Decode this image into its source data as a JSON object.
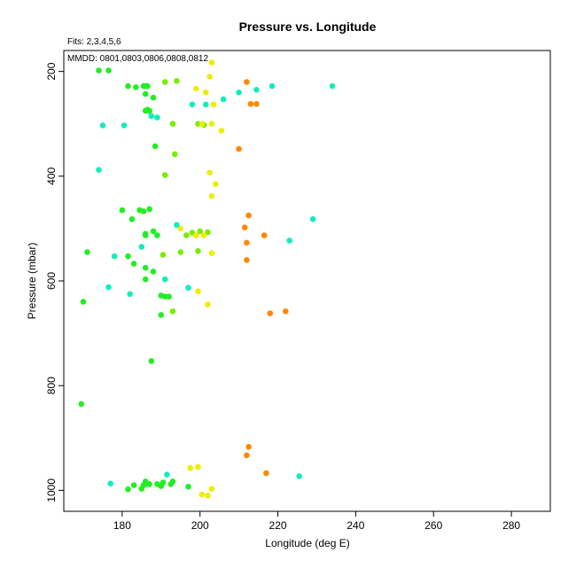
{
  "chart_data": {
    "type": "scatter",
    "title": "Pressure vs. Longitude",
    "xlabel": "Longitude (deg E)",
    "ylabel": "Pressure (mbar)",
    "xlim": [
      165,
      290
    ],
    "ylim": [
      1040,
      160
    ],
    "y_inverted": true,
    "xticks": [
      180,
      200,
      220,
      240,
      260,
      280
    ],
    "yticks": [
      200,
      400,
      600,
      800,
      1000
    ],
    "fits_note": "Fits: 2,3,4,5,6",
    "mmdd_note": "MMDD: 0801,0803,0806,0808,0812",
    "grid": false,
    "legend": "none",
    "colors": {
      "green": "#22ee22",
      "lightgreen": "#77ee00",
      "yellow": "#eeee00",
      "orange": "#ff8800",
      "cyan": "#11eebb"
    },
    "series": [
      {
        "color_key": "green",
        "points": [
          [
            174,
            198
          ],
          [
            176.5,
            198
          ],
          [
            181.5,
            228
          ],
          [
            183.5,
            230
          ],
          [
            185.5,
            228
          ],
          [
            186,
            228
          ],
          [
            186.5,
            228
          ],
          [
            186,
            243
          ],
          [
            188,
            250
          ],
          [
            186,
            275
          ],
          [
            186.5,
            273
          ],
          [
            187,
            275
          ],
          [
            188.5,
            343
          ],
          [
            180,
            465
          ],
          [
            182.5,
            482
          ],
          [
            184.5,
            465
          ],
          [
            185.5,
            467
          ],
          [
            187,
            463
          ],
          [
            186,
            510
          ],
          [
            186,
            513
          ],
          [
            188,
            505
          ],
          [
            189,
            513
          ],
          [
            171,
            545
          ],
          [
            181.5,
            553
          ],
          [
            183,
            567
          ],
          [
            186,
            575
          ],
          [
            188,
            582
          ],
          [
            186,
            597
          ],
          [
            170,
            640
          ],
          [
            190,
            628
          ],
          [
            191,
            630
          ],
          [
            192,
            630
          ],
          [
            190,
            665
          ],
          [
            187.5,
            753
          ],
          [
            169.5,
            835
          ],
          [
            181.5,
            998
          ],
          [
            183,
            990
          ],
          [
            185,
            997
          ],
          [
            185.5,
            990
          ],
          [
            186,
            983
          ],
          [
            186,
            988
          ],
          [
            187,
            988
          ],
          [
            189,
            988
          ],
          [
            190,
            992
          ],
          [
            190.5,
            985
          ],
          [
            192.5,
            988
          ],
          [
            193,
            983
          ],
          [
            197,
            993
          ]
        ]
      },
      {
        "color_key": "lightgreen",
        "points": [
          [
            191,
            220
          ],
          [
            194,
            218
          ],
          [
            193,
            300
          ],
          [
            193.5,
            358
          ],
          [
            191,
            398
          ],
          [
            195,
            545
          ],
          [
            190.5,
            550
          ],
          [
            193,
            658
          ],
          [
            199.5,
            300
          ],
          [
            201,
            302
          ],
          [
            198,
            508
          ],
          [
            200,
            505
          ],
          [
            202,
            507
          ],
          [
            196.5,
            513
          ],
          [
            199.5,
            543
          ]
        ]
      },
      {
        "color_key": "yellow",
        "points": [
          [
            203,
            183
          ],
          [
            202.5,
            210
          ],
          [
            199,
            233
          ],
          [
            201.5,
            240
          ],
          [
            203.5,
            263
          ],
          [
            200.5,
            300
          ],
          [
            203,
            300
          ],
          [
            205.5,
            313
          ],
          [
            202.5,
            393
          ],
          [
            204,
            415
          ],
          [
            203,
            438
          ],
          [
            195,
            500
          ],
          [
            199,
            513
          ],
          [
            201,
            513
          ],
          [
            203,
            547
          ],
          [
            199.5,
            620
          ],
          [
            202,
            645
          ],
          [
            197.5,
            957
          ],
          [
            199.5,
            955
          ],
          [
            200.5,
            1008
          ],
          [
            202,
            1010
          ],
          [
            203,
            997
          ]
        ]
      },
      {
        "color_key": "orange",
        "points": [
          [
            212,
            220
          ],
          [
            213,
            262
          ],
          [
            214.5,
            262
          ],
          [
            210,
            348
          ],
          [
            212.5,
            475
          ],
          [
            211.5,
            498
          ],
          [
            216.5,
            513
          ],
          [
            212,
            527
          ],
          [
            212,
            560
          ],
          [
            218,
            662
          ],
          [
            222,
            658
          ],
          [
            212.5,
            917
          ],
          [
            212,
            933
          ],
          [
            217,
            967
          ]
        ]
      },
      {
        "color_key": "cyan",
        "points": [
          [
            218.5,
            228
          ],
          [
            234,
            228
          ],
          [
            214.5,
            235
          ],
          [
            210,
            240
          ],
          [
            206,
            253
          ],
          [
            198,
            263
          ],
          [
            201.5,
            263
          ],
          [
            187.5,
            285
          ],
          [
            189,
            288
          ],
          [
            175,
            303
          ],
          [
            180.5,
            303
          ],
          [
            174,
            388
          ],
          [
            194,
            493
          ],
          [
            229,
            482
          ],
          [
            223,
            523
          ],
          [
            185,
            535
          ],
          [
            178,
            553
          ],
          [
            176.5,
            612
          ],
          [
            191,
            597
          ],
          [
            197,
            613
          ],
          [
            182,
            625
          ],
          [
            191.5,
            970
          ],
          [
            225.5,
            973
          ],
          [
            177,
            987
          ]
        ]
      }
    ]
  }
}
